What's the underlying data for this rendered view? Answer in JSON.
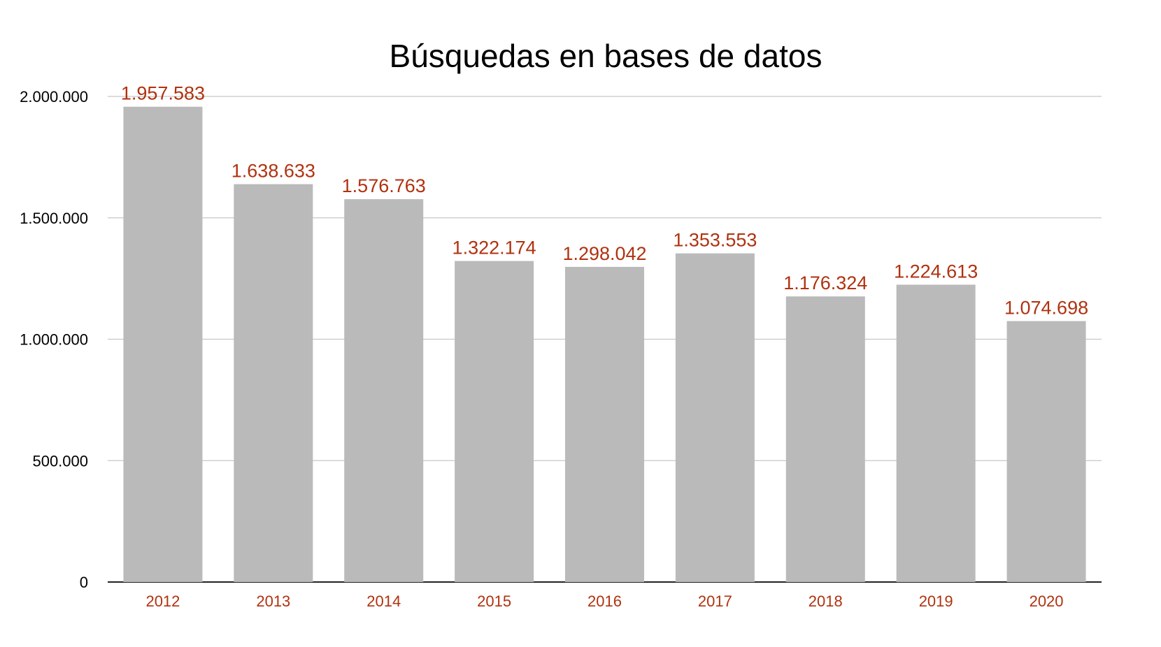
{
  "chart_data": {
    "type": "bar",
    "title": "Búsquedas en bases de datos",
    "xlabel": "",
    "ylabel": "",
    "categories": [
      "2012",
      "2013",
      "2014",
      "2015",
      "2016",
      "2017",
      "2018",
      "2019",
      "2020"
    ],
    "values": [
      1957583,
      1638633,
      1576763,
      1322174,
      1298042,
      1353553,
      1176324,
      1224613,
      1074698
    ],
    "data_labels": [
      "1.957.583",
      "1.638.633",
      "1.576.763",
      "1.322.174",
      "1.298.042",
      "1.353.553",
      "1.176.324",
      "1.224.613",
      "1.074.698"
    ],
    "ylim": [
      0,
      2000000
    ],
    "yticks": [
      0,
      500000,
      1000000,
      1500000,
      2000000
    ],
    "ytick_labels": [
      "0",
      "500.000",
      "1.000.000",
      "1.500.000",
      "2.000.000"
    ],
    "grid": true,
    "legend": "none",
    "colors": {
      "bar": "#bababa",
      "label": "#b0320f",
      "grid": "#c8c8c8",
      "axis": "#222222",
      "text": "#000000"
    }
  }
}
